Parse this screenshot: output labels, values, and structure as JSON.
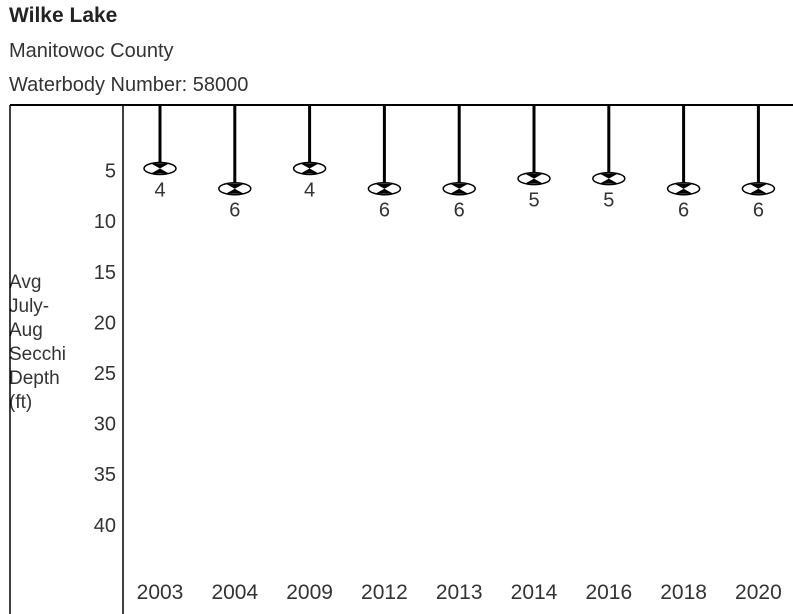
{
  "header": {
    "title": "Wilke Lake",
    "county": "Manitowoc County",
    "waterbody": "Waterbody Number: 58000"
  },
  "chart_data": {
    "type": "scatter",
    "title": "Wilke Lake",
    "ylabel_lines": [
      "Avg",
      "July-",
      "Aug",
      "Secchi",
      "Depth",
      "(ft)"
    ],
    "y_reversed": true,
    "ylim": [
      0,
      45
    ],
    "yticks": [
      5,
      10,
      15,
      20,
      25,
      30,
      35,
      40
    ],
    "categories": [
      "2003",
      "2004",
      "2009",
      "2012",
      "2013",
      "2014",
      "2016",
      "2018",
      "2020"
    ],
    "values": [
      4,
      6,
      4,
      6,
      6,
      5,
      5,
      6,
      6
    ],
    "marker": "secchi-disk",
    "colors": {
      "line": "#000000",
      "frame": "#000000",
      "text": "#333333"
    }
  }
}
